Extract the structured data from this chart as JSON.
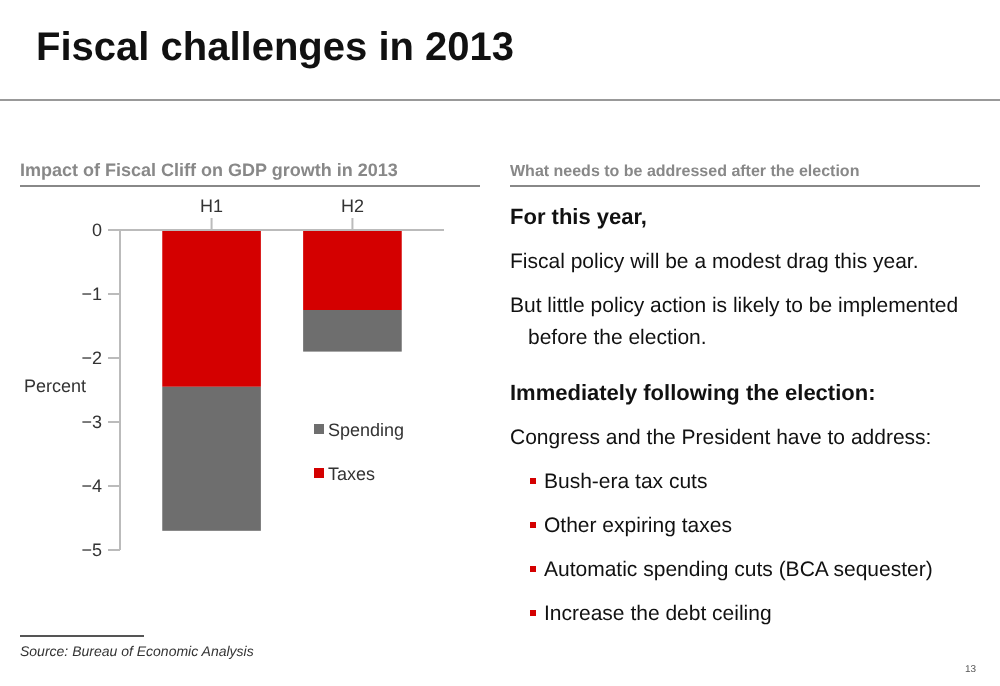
{
  "chart_data": [
    {
      "type": "bar",
      "title": "Fiscal challenges in 2013",
      "subtitle": "Impact of Fiscal Cliff on GDP growth in 2013",
      "categories": [
        "H1",
        "H2"
      ],
      "stacked": true,
      "ylabel": "Percent",
      "ylim": [
        -5,
        0
      ],
      "yticks": [
        -5,
        -4,
        -3,
        -2,
        -1,
        0
      ],
      "grid": false,
      "legend": "right",
      "series": [
        {
          "name": "Taxes",
          "color": "#d40000",
          "values": [
            -2.45,
            -1.25
          ]
        },
        {
          "name": "Spending",
          "color": "#6e6e6e",
          "values": [
            -2.25,
            -0.65
          ]
        }
      ],
      "annotations": [
        "Source: Bureau of Economic Analysis"
      ]
    },
    {
      "type": "other",
      "title": "What needs to be addressed after the election",
      "annotations": [
        "For this year,",
        "Fiscal policy will be a modest drag this year.",
        "But little policy action is likely to be implemented before the election.",
        "Immediately following the election:",
        "Congress and the President have to address:",
        "Bush-era tax cuts",
        "Other expiring taxes",
        "Automatic spending cuts (BCA sequester)",
        "Increase the debt ceiling",
        "13"
      ]
    }
  ]
}
